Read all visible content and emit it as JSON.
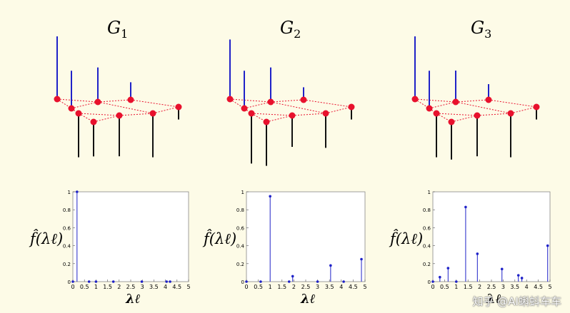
{
  "colors": {
    "background": "#fdfbe7",
    "node": "#e8112d",
    "edge": "#e8112d",
    "positive": "#1f22c8",
    "negative": "#111111",
    "stem": "#1f22c8"
  },
  "panels": [
    {
      "title": {
        "main": "G",
        "sub": "1"
      },
      "graph": {
        "signal": [
          1.0,
          0.6,
          -0.7,
          0.55,
          -0.55,
          0.28,
          -0.65,
          -0.7,
          -0.2,
          0.0
        ]
      },
      "spectrum": {
        "ylabel": "f̂(λℓ)",
        "xlabel": "λℓ",
        "xticks": [
          "0",
          "0.5",
          "1",
          "1.5",
          "2",
          "2.5",
          "3",
          "3.5",
          "4",
          "4.5",
          "5"
        ],
        "yticks": [
          "0",
          "0.2",
          "0.4",
          "0.6",
          "0.8",
          "1"
        ],
        "lambda": [
          0,
          0.18,
          0.7,
          1.0,
          1.75,
          2.98,
          4.05,
          4.2
        ],
        "fhat": [
          0,
          1.0,
          0,
          0,
          0,
          0,
          0,
          0
        ]
      }
    },
    {
      "title": {
        "main": "G",
        "sub": "2"
      },
      "graph": {
        "signal": [
          0.95,
          0.6,
          -0.8,
          0.55,
          -0.7,
          0.2,
          -0.5,
          -0.55,
          -0.2,
          0.0
        ]
      },
      "spectrum": {
        "ylabel": "f̂(λℓ)",
        "xlabel": "λℓ",
        "xticks": [
          "0",
          "0.5",
          "1",
          "1.5",
          "2",
          "2.5",
          "3",
          "3.5",
          "4",
          "4.5",
          "5"
        ],
        "yticks": [
          "0",
          "0.2",
          "0.4",
          "0.6",
          "0.8",
          "1"
        ],
        "lambda": [
          0,
          0.6,
          1.0,
          1.8,
          1.95,
          3.0,
          3.55,
          4.1,
          4.85
        ],
        "fhat": [
          0,
          0,
          0.95,
          0,
          0.06,
          0,
          0.18,
          0,
          0.25
        ]
      }
    },
    {
      "title": {
        "main": "G",
        "sub": "3"
      },
      "graph": {
        "signal": [
          1.0,
          0.6,
          -0.7,
          0.5,
          -0.6,
          0.25,
          -0.65,
          -0.7,
          -0.2,
          0.0
        ]
      },
      "spectrum": {
        "ylabel": "f̂(λℓ)",
        "xlabel": "λℓ",
        "xticks": [
          "0",
          "0.5",
          "1",
          "1.5",
          "2",
          "2.5",
          "3",
          "3.5",
          "4",
          "4.5",
          "5"
        ],
        "yticks": [
          "0",
          "0.2",
          "0.4",
          "0.6",
          "0.8",
          "1"
        ],
        "lambda": [
          0,
          0.3,
          0.65,
          1.0,
          1.4,
          1.9,
          2.95,
          3.65,
          3.8,
          4.9
        ],
        "fhat": [
          0,
          0.05,
          0.15,
          0,
          0.83,
          0.31,
          0.14,
          0.07,
          0.04,
          0.4
        ]
      }
    }
  ],
  "watermark": "知乎 @AI蝌蚪车车"
}
